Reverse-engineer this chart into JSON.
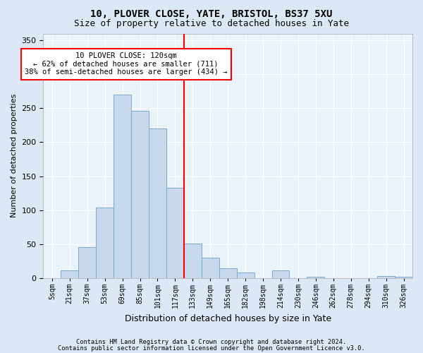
{
  "title1": "10, PLOVER CLOSE, YATE, BRISTOL, BS37 5XU",
  "title2": "Size of property relative to detached houses in Yate",
  "xlabel": "Distribution of detached houses by size in Yate",
  "ylabel": "Number of detached properties",
  "bar_labels": [
    "5sqm",
    "21sqm",
    "37sqm",
    "53sqm",
    "69sqm",
    "85sqm",
    "101sqm",
    "117sqm",
    "133sqm",
    "149sqm",
    "165sqm",
    "182sqm",
    "198sqm",
    "214sqm",
    "230sqm",
    "246sqm",
    "262sqm",
    "278sqm",
    "294sqm",
    "310sqm",
    "326sqm"
  ],
  "bar_values": [
    0,
    11,
    46,
    104,
    270,
    246,
    220,
    133,
    51,
    30,
    15,
    8,
    0,
    11,
    0,
    2,
    0,
    0,
    0,
    3,
    2
  ],
  "bar_color": "#c9d9ed",
  "bar_edge_color": "#7aaace",
  "vline_x": 8,
  "vline_color": "red",
  "bin_width": 1,
  "annotation_line1": "10 PLOVER CLOSE: 120sqm",
  "annotation_line2": "← 62% of detached houses are smaller (711)",
  "annotation_line3": "38% of semi-detached houses are larger (434) →",
  "annotation_box_color": "white",
  "annotation_box_edge_color": "red",
  "ylim": [
    0,
    360
  ],
  "yticks": [
    0,
    50,
    100,
    150,
    200,
    250,
    300,
    350
  ],
  "footer1": "Contains HM Land Registry data © Crown copyright and database right 2024.",
  "footer2": "Contains public sector information licensed under the Open Government Licence v3.0.",
  "bg_color": "#dce8f5",
  "plot_bg_color": "#eaf2fa"
}
